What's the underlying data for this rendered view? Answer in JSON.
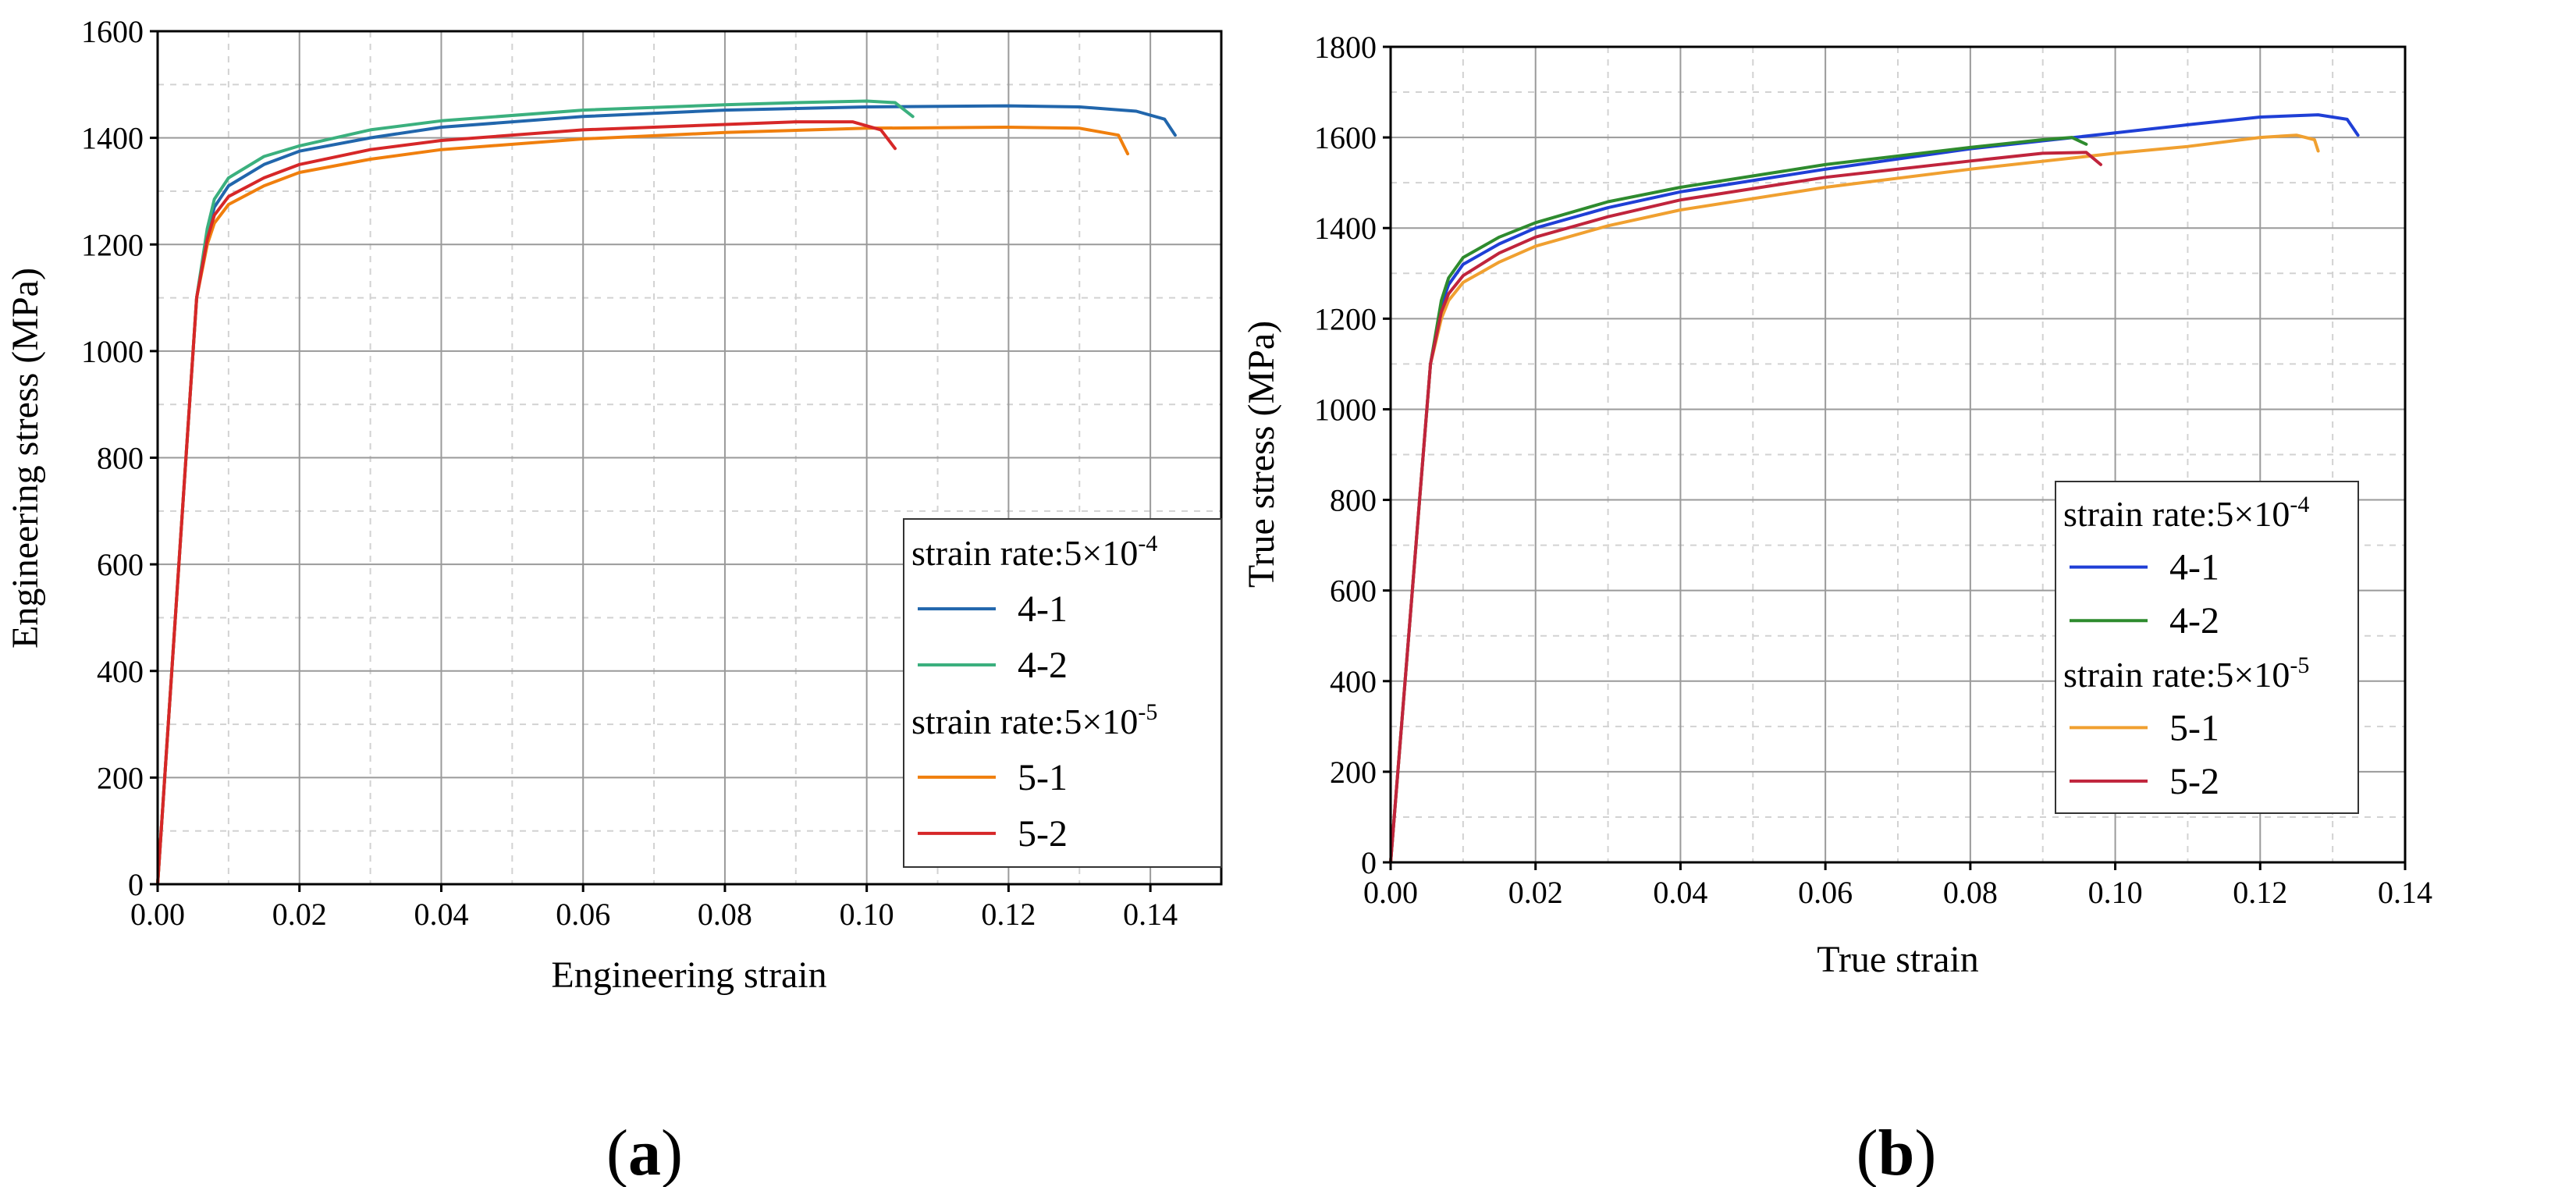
{
  "chart_data": [
    {
      "type": "line",
      "panel_label": "a",
      "xlabel": "Engineering strain",
      "ylabel": "Engineering stress (MPa)",
      "xlim": [
        0,
        0.15
      ],
      "ylim": [
        0,
        1600
      ],
      "xticks": [
        0.0,
        0.02,
        0.04,
        0.06,
        0.08,
        0.1,
        0.12,
        0.14
      ],
      "xtick_labels": [
        "0.00",
        "0.02",
        "0.04",
        "0.06",
        "0.08",
        "0.10",
        "0.12",
        "0.14"
      ],
      "yticks": [
        0,
        200,
        400,
        600,
        800,
        1000,
        1200,
        1400,
        1600
      ],
      "ytick_labels": [
        "0",
        "200",
        "400",
        "600",
        "800",
        "1000",
        "1200",
        "1400",
        "1600"
      ],
      "grid": true,
      "legend_position": "right-middle",
      "legend_groups": [
        {
          "heading_base": "strain rate:5×10",
          "heading_exp": "-4",
          "series": [
            0,
            1
          ]
        },
        {
          "heading_base": "strain rate:5×10",
          "heading_exp": "-5",
          "series": [
            2,
            3
          ]
        }
      ],
      "series": [
        {
          "name": "4-1",
          "color": "#2166ac",
          "x": [
            0,
            0.004,
            0.0055,
            0.007,
            0.008,
            0.01,
            0.015,
            0.02,
            0.03,
            0.04,
            0.06,
            0.08,
            0.1,
            0.12,
            0.13,
            0.138,
            0.142,
            0.1435
          ],
          "y": [
            0,
            800,
            1100,
            1220,
            1270,
            1310,
            1350,
            1375,
            1400,
            1420,
            1440,
            1452,
            1458,
            1460,
            1458,
            1450,
            1435,
            1405
          ]
        },
        {
          "name": "4-2",
          "color": "#3bb07e",
          "x": [
            0,
            0.004,
            0.0055,
            0.007,
            0.008,
            0.01,
            0.015,
            0.02,
            0.03,
            0.04,
            0.06,
            0.08,
            0.09,
            0.1,
            0.104,
            0.1065
          ],
          "y": [
            0,
            800,
            1100,
            1230,
            1285,
            1325,
            1365,
            1385,
            1415,
            1432,
            1452,
            1462,
            1466,
            1469,
            1466,
            1440
          ]
        },
        {
          "name": "5-1",
          "color": "#f07f0d",
          "x": [
            0,
            0.004,
            0.0055,
            0.007,
            0.008,
            0.01,
            0.015,
            0.02,
            0.03,
            0.04,
            0.06,
            0.08,
            0.1,
            0.12,
            0.13,
            0.1355,
            0.1368
          ],
          "y": [
            0,
            800,
            1100,
            1200,
            1240,
            1275,
            1310,
            1335,
            1360,
            1378,
            1398,
            1410,
            1418,
            1420,
            1418,
            1405,
            1370
          ]
        },
        {
          "name": "5-2",
          "color": "#d62728",
          "x": [
            0,
            0.004,
            0.0055,
            0.007,
            0.008,
            0.01,
            0.015,
            0.02,
            0.03,
            0.04,
            0.06,
            0.08,
            0.09,
            0.098,
            0.102,
            0.104
          ],
          "y": [
            0,
            800,
            1100,
            1210,
            1255,
            1290,
            1325,
            1350,
            1378,
            1395,
            1415,
            1425,
            1430,
            1430,
            1415,
            1380
          ]
        }
      ]
    },
    {
      "type": "line",
      "panel_label": "b",
      "xlabel": "True strain",
      "ylabel": "True stress (MPa)",
      "xlim": [
        0,
        0.14
      ],
      "ylim": [
        0,
        1800
      ],
      "xticks": [
        0.0,
        0.02,
        0.04,
        0.06,
        0.08,
        0.1,
        0.12,
        0.14
      ],
      "xtick_labels": [
        "0.00",
        "0.02",
        "0.04",
        "0.06",
        "0.08",
        "0.10",
        "0.12",
        "0.14"
      ],
      "yticks": [
        0,
        200,
        400,
        600,
        800,
        1000,
        1200,
        1400,
        1600,
        1800
      ],
      "ytick_labels": [
        "0",
        "200",
        "400",
        "600",
        "800",
        "1000",
        "1200",
        "1400",
        "1600",
        "1800"
      ],
      "grid": true,
      "legend_position": "right-middle",
      "legend_groups": [
        {
          "heading_base": "strain rate:5×10",
          "heading_exp": "-4",
          "series": [
            0,
            1
          ]
        },
        {
          "heading_base": "strain rate:5×10",
          "heading_exp": "-5",
          "series": [
            2,
            3
          ]
        }
      ],
      "series": [
        {
          "name": "4-1",
          "color": "#1f3fd6",
          "x": [
            0,
            0.004,
            0.0055,
            0.007,
            0.008,
            0.01,
            0.015,
            0.02,
            0.03,
            0.04,
            0.06,
            0.08,
            0.1,
            0.11,
            0.12,
            0.128,
            0.132,
            0.1335
          ],
          "y": [
            0,
            800,
            1100,
            1230,
            1275,
            1320,
            1365,
            1400,
            1445,
            1480,
            1530,
            1575,
            1610,
            1628,
            1645,
            1650,
            1640,
            1605
          ]
        },
        {
          "name": "4-2",
          "color": "#2e8b2e",
          "x": [
            0,
            0.004,
            0.0055,
            0.007,
            0.008,
            0.01,
            0.015,
            0.02,
            0.03,
            0.04,
            0.06,
            0.08,
            0.09,
            0.094,
            0.096
          ],
          "y": [
            0,
            800,
            1100,
            1240,
            1290,
            1335,
            1380,
            1412,
            1458,
            1490,
            1540,
            1578,
            1595,
            1600,
            1585
          ]
        },
        {
          "name": "5-1",
          "color": "#f0a030",
          "x": [
            0,
            0.004,
            0.0055,
            0.007,
            0.008,
            0.01,
            0.015,
            0.02,
            0.03,
            0.04,
            0.06,
            0.08,
            0.1,
            0.11,
            0.12,
            0.125,
            0.1275,
            0.128
          ],
          "y": [
            0,
            800,
            1100,
            1200,
            1240,
            1280,
            1325,
            1360,
            1405,
            1440,
            1490,
            1530,
            1565,
            1580,
            1600,
            1605,
            1595,
            1570
          ]
        },
        {
          "name": "5-2",
          "color": "#c0243c",
          "x": [
            0,
            0.004,
            0.0055,
            0.007,
            0.008,
            0.01,
            0.015,
            0.02,
            0.03,
            0.04,
            0.06,
            0.08,
            0.09,
            0.096,
            0.098
          ],
          "y": [
            0,
            800,
            1100,
            1215,
            1255,
            1295,
            1345,
            1380,
            1425,
            1462,
            1512,
            1548,
            1565,
            1567,
            1540
          ]
        }
      ]
    }
  ]
}
